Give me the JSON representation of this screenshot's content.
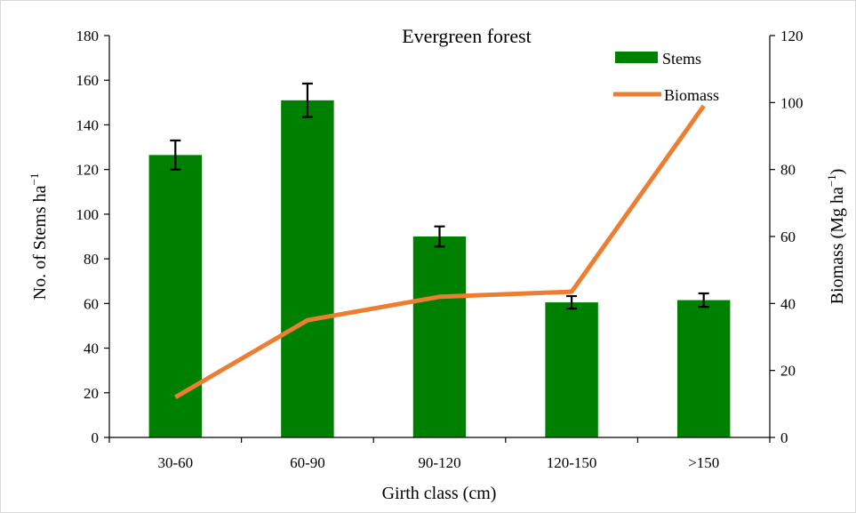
{
  "chart_data": {
    "type": "bar",
    "title": "Evergreen forest",
    "xlabel": "Girth class (cm)",
    "ylabel": "No. of Stems ha",
    "ylabel_sup": "−1",
    "y2label": "Biomass (Mg ha",
    "y2label_sup": "−1",
    "y2label_end": ")",
    "categories": [
      "30-60",
      "60-90",
      "90-120",
      "120-150",
      ">150"
    ],
    "ylim": [
      0,
      180
    ],
    "yticks": [
      0,
      20,
      40,
      60,
      80,
      100,
      120,
      140,
      160,
      180
    ],
    "y2lim": [
      0,
      120
    ],
    "y2ticks": [
      0,
      20,
      40,
      60,
      80,
      100,
      120
    ],
    "legend_position": "top-right",
    "grid": false,
    "series": [
      {
        "name": "Stems",
        "kind": "bar",
        "axis": "left",
        "color": "#008000",
        "values": [
          126.5,
          151,
          90,
          60.5,
          61.5
        ],
        "error": [
          6.5,
          7.5,
          4.5,
          2.8,
          3.0
        ]
      },
      {
        "name": "Biomass",
        "kind": "line",
        "axis": "right",
        "color": "#ed7d31",
        "values": [
          12,
          35,
          42,
          43.5,
          99
        ]
      }
    ]
  }
}
